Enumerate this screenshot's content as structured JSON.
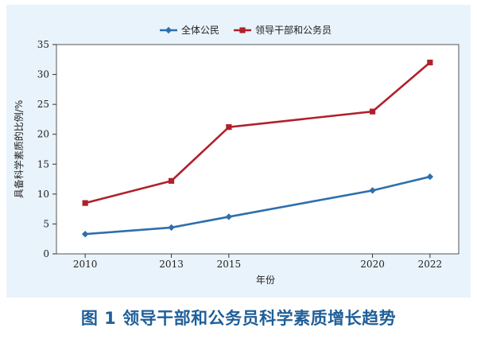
{
  "caption": "图 1 领导干部和公务员科学素质增长趋势",
  "chart_data": {
    "type": "line",
    "title": "",
    "xlabel": "年份",
    "ylabel": "具备科学素质的比例/%",
    "x": [
      2010,
      2013,
      2015,
      2020,
      2022
    ],
    "x_tick_labels": [
      "2010",
      "2013",
      "2015",
      "2020",
      "2022"
    ],
    "xlim": [
      2009,
      2023
    ],
    "ylim": [
      0,
      35
    ],
    "y_ticks": [
      0,
      5,
      10,
      15,
      20,
      25,
      30,
      35
    ],
    "grid": false,
    "legend_position": "top-center",
    "series": [
      {
        "name": "全体公民",
        "values": [
          3.3,
          4.4,
          6.2,
          10.6,
          12.9
        ],
        "color": "#2e6fad",
        "marker": "diamond"
      },
      {
        "name": "领导干部和公务员",
        "values": [
          8.5,
          12.2,
          21.2,
          23.8,
          32.0
        ],
        "color": "#b0202a",
        "marker": "square"
      }
    ]
  }
}
